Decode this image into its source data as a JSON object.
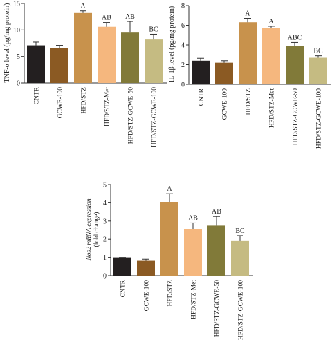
{
  "chart_data": [
    {
      "type": "bar",
      "ylabel": "TNF-α level (pg/mg protein)",
      "ylim": [
        0,
        15
      ],
      "yticks": [
        0,
        5,
        10,
        15
      ],
      "categories": [
        "CNTR",
        "GCWE-100",
        "HFD/STZ",
        "HFD/STZ-Met",
        "HFD/STZ-GCWE-50",
        "HFD/STZ-GCWE-100"
      ],
      "values": [
        7.1,
        6.6,
        13.2,
        10.6,
        9.5,
        8.2
      ],
      "errors": [
        0.6,
        0.5,
        0.4,
        0.8,
        2.1,
        1.0
      ],
      "labels": [
        "",
        "",
        "A",
        "AB",
        "AB",
        "BC"
      ],
      "colors": [
        "#231f20",
        "#8b5a23",
        "#c8924c",
        "#f5b77e",
        "#817a39",
        "#c5bb82"
      ]
    },
    {
      "type": "bar",
      "ylabel": "IL-1β level (pg/mg protein)",
      "ylim": [
        0,
        8
      ],
      "yticks": [
        0,
        2,
        4,
        6,
        8
      ],
      "categories": [
        "CNTR",
        "GCWE-100",
        "HFD/STZ",
        "HFD/STZ-Met",
        "HFD/STZ-GCWE-50",
        "HFD/STZ-GCWE-100"
      ],
      "values": [
        2.4,
        2.2,
        6.3,
        5.7,
        3.9,
        2.7
      ],
      "errors": [
        0.25,
        0.2,
        0.4,
        0.2,
        0.35,
        0.2
      ],
      "labels": [
        "",
        "",
        "A",
        "A",
        "ABC",
        "BC"
      ],
      "colors": [
        "#231f20",
        "#8b5a23",
        "#c8924c",
        "#f5b77e",
        "#817a39",
        "#c5bb82"
      ]
    },
    {
      "type": "bar",
      "ylabel": "Nos2 mRNA expression",
      "ylabel2": "(fold change)",
      "ylim": [
        0,
        5
      ],
      "yticks": [
        0,
        1,
        2,
        3,
        4,
        5
      ],
      "categories": [
        "CNTR",
        "GCWE-100",
        "HFD/STZ",
        "HFD/STZ-Met",
        "HFD/STZ-GCWE-50",
        "HFD/STZ-GCWE-100"
      ],
      "values": [
        1.0,
        0.85,
        4.05,
        2.55,
        2.75,
        1.9
      ],
      "errors": [
        0.0,
        0.05,
        0.45,
        0.35,
        0.5,
        0.3
      ],
      "labels": [
        "",
        "",
        "A",
        "AB",
        "AB",
        "BC"
      ],
      "colors": [
        "#231f20",
        "#8b5a23",
        "#c8924c",
        "#f5b77e",
        "#817a39",
        "#c5bb82"
      ]
    }
  ]
}
